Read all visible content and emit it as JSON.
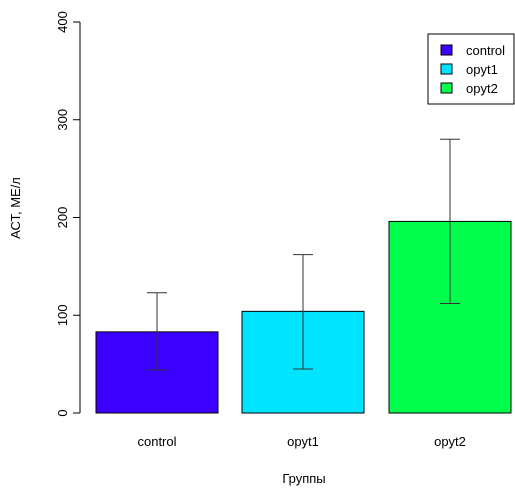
{
  "chart_data": {
    "type": "bar",
    "categories": [
      "control",
      "opyt1",
      "opyt2"
    ],
    "values": [
      83,
      104,
      196
    ],
    "error_low": [
      44,
      45,
      112
    ],
    "error_high": [
      123,
      162,
      280
    ],
    "xlabel": "Группы",
    "ylabel": "АСТ, МЕ/л",
    "ylim": [
      0,
      400
    ],
    "yticks": [
      0,
      100,
      200,
      300,
      400
    ],
    "grid": false,
    "legend": {
      "placement": "top-right",
      "entries": [
        "control",
        "opyt1",
        "opyt2"
      ]
    },
    "colors": [
      "#3b00ff",
      "#00e5ff",
      "#00ff4c"
    ]
  }
}
